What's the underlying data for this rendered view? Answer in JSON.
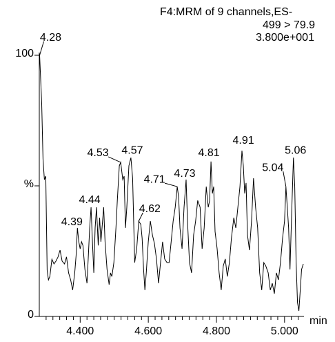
{
  "chart_data": {
    "type": "line",
    "header_lines": [
      "F4:MRM of 9 channels,ES-",
      "499 > 79.9",
      "3.800e+001"
    ],
    "x_unit": "min",
    "xlim": [
      4.28,
      5.055
    ],
    "ylim": [
      0,
      100
    ],
    "xticks": [
      {
        "value": 4.4,
        "label": "4.400"
      },
      {
        "value": 4.6,
        "label": "4.600"
      },
      {
        "value": 4.8,
        "label": "4.800"
      },
      {
        "value": 5.0,
        "label": "5.000"
      }
    ],
    "xminorticks": [
      4.3,
      4.32,
      4.34,
      4.36,
      4.38,
      4.42,
      4.44,
      4.46,
      4.48,
      4.5,
      4.52,
      4.54,
      4.56,
      4.58,
      4.62,
      4.64,
      4.66,
      4.68,
      4.7,
      4.72,
      4.74,
      4.76,
      4.78,
      4.82,
      4.84,
      4.86,
      4.88,
      4.9,
      4.92,
      4.94,
      4.96,
      4.98,
      5.02,
      5.04
    ],
    "yticks": [
      0,
      {
        "value": 50,
        "label": "%"
      },
      100
    ],
    "color": "#000000",
    "series": [
      {
        "x": [
          4.281,
          4.287,
          4.291,
          4.295,
          4.299,
          4.303,
          4.307,
          4.311,
          4.317,
          4.323,
          4.329,
          4.335,
          4.341,
          4.347,
          4.354,
          4.36,
          4.366,
          4.372,
          4.378,
          4.384,
          4.388,
          4.392,
          4.396,
          4.4,
          4.404,
          4.408,
          4.414,
          4.42,
          4.424,
          4.428,
          4.432,
          4.436,
          4.44,
          4.444,
          4.448,
          4.453,
          4.457,
          4.461,
          4.465,
          4.469,
          4.473,
          4.479,
          4.485,
          4.489,
          4.493,
          4.499,
          4.505,
          4.509,
          4.515,
          4.519,
          4.525,
          4.529,
          4.533,
          4.537,
          4.543,
          4.549,
          4.554,
          4.56,
          4.566,
          4.572,
          4.578,
          4.582,
          4.586,
          4.59,
          4.594,
          4.6,
          4.606,
          4.612,
          4.618,
          4.624,
          4.63,
          4.636,
          4.642,
          4.648,
          4.655,
          4.661,
          4.667,
          4.673,
          4.679,
          4.685,
          4.689,
          4.693,
          4.699,
          4.705,
          4.711,
          4.715,
          4.721,
          4.727,
          4.733,
          4.739,
          4.745,
          4.752,
          4.758,
          4.764,
          4.77,
          4.776,
          4.78,
          4.784,
          4.788,
          4.792,
          4.796,
          4.802,
          4.808,
          4.814,
          4.82,
          4.826,
          4.832,
          4.838,
          4.844,
          4.851,
          4.857,
          4.863,
          4.869,
          4.875,
          4.879,
          4.883,
          4.887,
          4.891,
          4.897,
          4.903,
          4.909,
          4.915,
          4.921,
          4.927,
          4.933,
          4.939,
          4.945,
          4.952,
          4.958,
          4.964,
          4.97,
          4.976,
          4.982,
          4.988,
          4.994,
          5.0,
          5.004,
          5.008,
          5.012,
          5.016,
          5.022,
          5.026,
          5.03,
          5.034,
          5.038,
          5.042,
          5.046,
          5.05,
          5.055
        ],
        "values": [
          100,
          81.5,
          60.3,
          52.4,
          53.7,
          17.7,
          14.0,
          15.3,
          21.9,
          20.1,
          21.2,
          22.8,
          25.4,
          21.2,
          20.1,
          22.8,
          16.7,
          14.0,
          10.1,
          16.7,
          23.3,
          33.9,
          28.6,
          25.9,
          28.6,
          27.2,
          18.0,
          12.7,
          23.3,
          33.9,
          41.8,
          28.6,
          16.7,
          33.9,
          41.8,
          27.2,
          37.8,
          28.6,
          35.2,
          41.8,
          28.6,
          18.0,
          12.2,
          16.7,
          15.3,
          20.6,
          33.9,
          44.4,
          57.7,
          59.0,
          52.4,
          53.7,
          33.9,
          41.8,
          57.7,
          60.8,
          52.9,
          20.6,
          25.9,
          36.5,
          35.2,
          29.9,
          18.5,
          10.1,
          16.7,
          28.6,
          36.5,
          31.2,
          28.0,
          22.0,
          12.7,
          20.6,
          28.6,
          22.0,
          20.6,
          20.6,
          28.6,
          36.5,
          41.8,
          49.7,
          45.8,
          33.9,
          25.9,
          41.8,
          52.4,
          36.5,
          20.6,
          16.7,
          31.2,
          36.5,
          44.4,
          41.8,
          25.9,
          33.9,
          49.7,
          41.8,
          44.4,
          59.3,
          47.1,
          49.7,
          32.5,
          25.9,
          16.7,
          10.1,
          19.3,
          22.0,
          15.3,
          20.6,
          29.9,
          37.8,
          33.9,
          41.8,
          49.7,
          63.5,
          57.7,
          47.1,
          51.1,
          31.2,
          25.4,
          36.5,
          52.9,
          41.8,
          33.9,
          16.7,
          10.1,
          20.6,
          19.3,
          16.7,
          10.1,
          12.7,
          8.7,
          16.7,
          14.0,
          20.6,
          29.9,
          36.5,
          49.7,
          41.8,
          33.9,
          18.0,
          44.4,
          60.8,
          49.7,
          20.6,
          5.3,
          2.1,
          10.1,
          18.0,
          20.1
        ]
      }
    ],
    "annotations": [
      {
        "text": "4.28",
        "x": 4.281,
        "y": 100
      },
      {
        "text": "4.39",
        "x": 4.392,
        "y": 33.9
      },
      {
        "text": "4.44",
        "x": 4.432,
        "y": 41.8
      },
      {
        "text": "4.53",
        "x": 4.519,
        "y": 59.0
      },
      {
        "text": "4.57",
        "x": 4.549,
        "y": 60.8
      },
      {
        "text": "4.62",
        "x": 4.572,
        "y": 36.5
      },
      {
        "text": "4.71",
        "x": 4.685,
        "y": 49.7
      },
      {
        "text": "4.73",
        "x": 4.711,
        "y": 52.4
      },
      {
        "text": "4.81",
        "x": 4.784,
        "y": 59.3
      },
      {
        "text": "4.91",
        "x": 4.875,
        "y": 63.5
      },
      {
        "text": "5.04",
        "x": 5.004,
        "y": 49.7
      },
      {
        "text": "5.06",
        "x": 5.026,
        "y": 60.8
      }
    ]
  }
}
